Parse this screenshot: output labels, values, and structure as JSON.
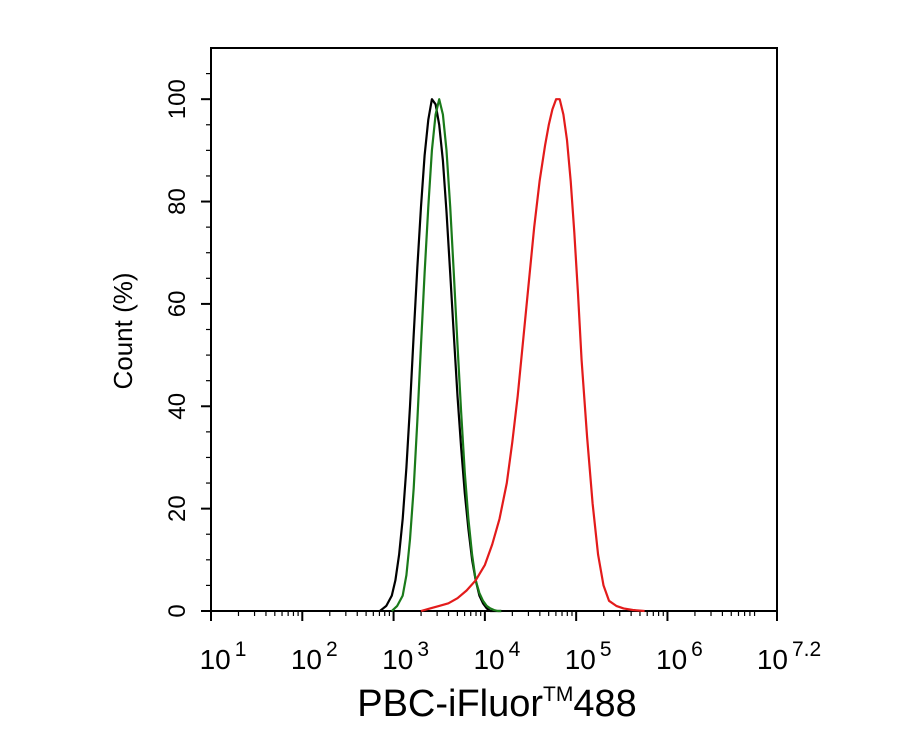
{
  "chart_data": {
    "type": "line",
    "title": "",
    "xlabel": {
      "base": "PBC-iFluor",
      "sup": "TM",
      "tail": "488"
    },
    "ylabel": "Count  (%)",
    "xscale": "log",
    "xlim": [
      1,
      7.2
    ],
    "ylim": [
      0,
      110
    ],
    "grid": false,
    "x_ticks": [
      {
        "value": 1,
        "base": "10",
        "exp": "1"
      },
      {
        "value": 2,
        "base": "10",
        "exp": "2"
      },
      {
        "value": 3,
        "base": "10",
        "exp": "3"
      },
      {
        "value": 4,
        "base": "10",
        "exp": "4"
      },
      {
        "value": 5,
        "base": "10",
        "exp": "5"
      },
      {
        "value": 6,
        "base": "10",
        "exp": "6"
      },
      {
        "value": 7.2,
        "base": "10",
        "exp": "7.2"
      }
    ],
    "y_ticks": [
      {
        "value": 0,
        "label": "0"
      },
      {
        "value": 20,
        "label": "20"
      },
      {
        "value": 40,
        "label": "40"
      },
      {
        "value": 60,
        "label": "60"
      },
      {
        "value": 80,
        "label": "80"
      },
      {
        "value": 100,
        "label": "100"
      }
    ],
    "series": [
      {
        "color": "#000000",
        "x": [
          2.85,
          2.92,
          2.98,
          3.02,
          3.06,
          3.1,
          3.14,
          3.18,
          3.22,
          3.26,
          3.3,
          3.34,
          3.38,
          3.42,
          3.46,
          3.5,
          3.54,
          3.58,
          3.62,
          3.66,
          3.7,
          3.74,
          3.78,
          3.82,
          3.86,
          3.9,
          3.94,
          3.98,
          4.02,
          4.06,
          4.1,
          4.14,
          4.18
        ],
        "y": [
          0,
          1,
          3,
          6,
          11,
          18,
          28,
          40,
          54,
          67,
          79,
          89,
          96,
          100,
          99,
          95,
          88,
          78,
          66,
          54,
          42,
          32,
          23,
          16,
          10,
          6,
          3,
          1.5,
          0.5,
          0,
          0,
          0,
          0
        ]
      },
      {
        "color": "#1a7a1a",
        "x": [
          2.98,
          3.04,
          3.1,
          3.14,
          3.18,
          3.22,
          3.26,
          3.3,
          3.34,
          3.38,
          3.42,
          3.46,
          3.5,
          3.54,
          3.58,
          3.62,
          3.66,
          3.7,
          3.74,
          3.78,
          3.82,
          3.86,
          3.9,
          3.94,
          3.98,
          4.02,
          4.06,
          4.1,
          4.14,
          4.18
        ],
        "y": [
          0,
          1,
          3,
          7,
          14,
          24,
          37,
          52,
          66,
          79,
          90,
          97,
          100,
          97,
          90,
          79,
          66,
          52,
          39,
          27,
          18,
          11,
          6,
          3.5,
          2,
          1,
          0.5,
          0.2,
          0,
          0
        ]
      },
      {
        "color": "#e31b1b",
        "x": [
          3.3,
          3.4,
          3.5,
          3.6,
          3.7,
          3.8,
          3.9,
          4.0,
          4.08,
          4.16,
          4.24,
          4.3,
          4.36,
          4.42,
          4.48,
          4.54,
          4.6,
          4.66,
          4.7,
          4.74,
          4.78,
          4.82,
          4.86,
          4.9,
          4.94,
          4.98,
          5.02,
          5.06,
          5.12,
          5.18,
          5.24,
          5.3,
          5.36,
          5.44,
          5.52,
          5.62,
          5.75
        ],
        "y": [
          0,
          0.5,
          1,
          1.5,
          2.5,
          4,
          6,
          9,
          13,
          18,
          25,
          33,
          42,
          53,
          64,
          75,
          84,
          91,
          95,
          98,
          100,
          100,
          97,
          92,
          84,
          74,
          62,
          49,
          34,
          21,
          11,
          5,
          2,
          1,
          0.5,
          0.2,
          0
        ]
      }
    ]
  }
}
